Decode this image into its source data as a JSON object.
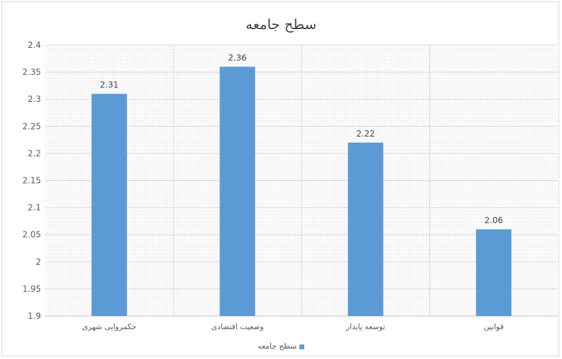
{
  "chart_data": {
    "type": "bar",
    "title": "سطح جامعه",
    "categories": [
      "حکمروایی شهری",
      "وضعیت اقتصادی",
      "توسعه پایدار",
      "قوانین"
    ],
    "series": [
      {
        "name": "سطح جامعه",
        "values": [
          2.31,
          2.36,
          2.22,
          2.06
        ],
        "color": "#5b9bd5"
      }
    ],
    "data_labels": [
      "2.31",
      "2.36",
      "2.22",
      "2.06"
    ],
    "ylim": [
      1.9,
      2.4
    ],
    "yticks": [
      "1.9",
      "1.95",
      "2",
      "2.05",
      "2.1",
      "2.15",
      "2.2",
      "2.25",
      "2.3",
      "2.35",
      "2.4"
    ],
    "grid": true,
    "legend_position": "bottom",
    "xlabel": "",
    "ylabel": ""
  }
}
